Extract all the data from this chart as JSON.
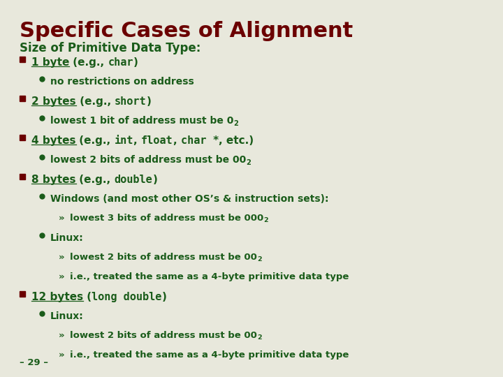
{
  "title": "Specific Cases of Alignment",
  "title_color": "#6B0000",
  "bg_color": "#E8E8DC",
  "subtitle": "Size of Primitive Data Type:",
  "subtitle_color": "#1A5C1A",
  "bullet_square_color": "#6B0000",
  "bullet_circle_color": "#1A5C1A",
  "text_color": "#1A5C1A",
  "footer": "– 29 –",
  "footer_color": "#1A5C1A",
  "title_fontsize": 22,
  "subtitle_fontsize": 12,
  "l1_fontsize": 11,
  "l2_fontsize": 10,
  "l3_fontsize": 9.5
}
